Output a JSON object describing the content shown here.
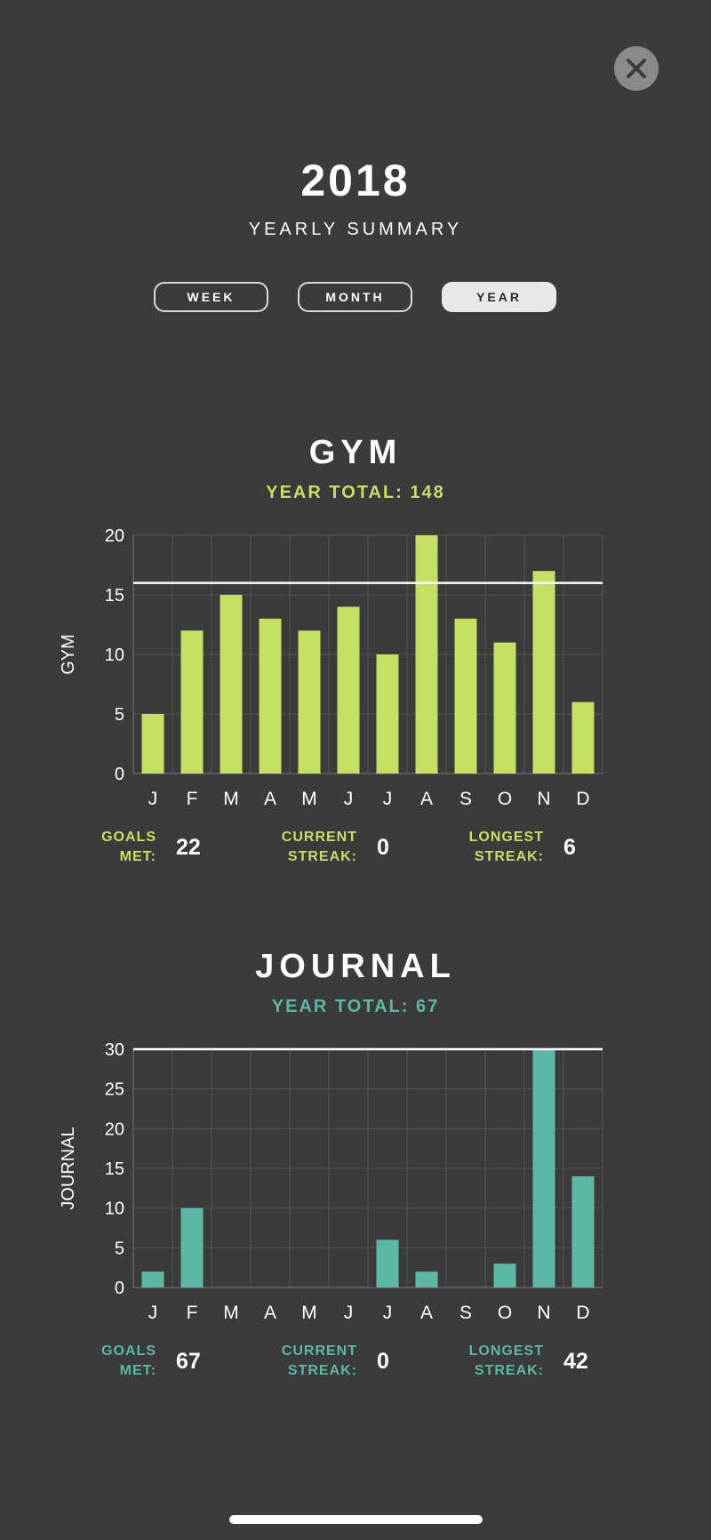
{
  "colors": {
    "background": "#3b3b3b",
    "gym": "#c5df62",
    "journal": "#5bb8a5",
    "goal_line": "#ffffff"
  },
  "header": {
    "close_icon": "close-icon",
    "title": "2018",
    "subtitle": "YEARLY SUMMARY"
  },
  "tabs": [
    {
      "label": "WEEK",
      "active": false
    },
    {
      "label": "MONTH",
      "active": false
    },
    {
      "label": "YEAR",
      "active": true
    }
  ],
  "sections": [
    {
      "title": "GYM",
      "total_text": "YEAR TOTAL: 148",
      "stats": [
        {
          "label_line1": "GOALS",
          "label_line2": "MET:",
          "value": "22"
        },
        {
          "label_line1": "CURRENT",
          "label_line2": "STREAK:",
          "value": "0"
        },
        {
          "label_line1": "LONGEST",
          "label_line2": "STREAK:",
          "value": "6"
        }
      ]
    },
    {
      "title": "JOURNAL",
      "total_text": "YEAR TOTAL: 67",
      "stats": [
        {
          "label_line1": "GOALS",
          "label_line2": "MET:",
          "value": "67"
        },
        {
          "label_line1": "CURRENT",
          "label_line2": "STREAK:",
          "value": "0"
        },
        {
          "label_line1": "LONGEST",
          "label_line2": "STREAK:",
          "value": "42"
        }
      ]
    }
  ],
  "chart_data": [
    {
      "type": "bar",
      "categories": [
        "J",
        "F",
        "M",
        "A",
        "M",
        "J",
        "J",
        "A",
        "S",
        "O",
        "N",
        "D"
      ],
      "values": [
        5,
        12,
        15,
        13,
        12,
        14,
        10,
        20,
        13,
        11,
        17,
        6
      ],
      "ylabel": "GYM",
      "ylim": [
        0,
        20
      ],
      "yticks": [
        0,
        5,
        10,
        15,
        20
      ],
      "goal_line": 16,
      "grid": true,
      "color": "#c5df62"
    },
    {
      "type": "bar",
      "categories": [
        "J",
        "F",
        "M",
        "A",
        "M",
        "J",
        "J",
        "A",
        "S",
        "O",
        "N",
        "D"
      ],
      "values": [
        2,
        10,
        0,
        0,
        0,
        0,
        6,
        2,
        0,
        3,
        30,
        14
      ],
      "ylabel": "JOURNAL",
      "ylim": [
        0,
        30
      ],
      "yticks": [
        0,
        5,
        10,
        15,
        20,
        25,
        30
      ],
      "goal_line": 30,
      "grid": true,
      "color": "#5bb8a5"
    }
  ]
}
